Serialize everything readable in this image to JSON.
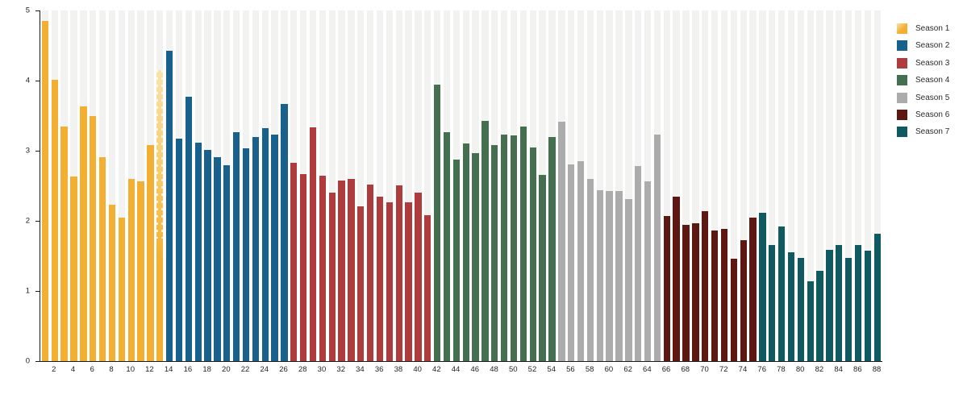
{
  "chart_data": {
    "type": "bar",
    "title": "",
    "xlabel": "",
    "ylabel": "",
    "ylim": [
      0,
      5
    ],
    "y_ticks": [
      0,
      1,
      2,
      3,
      4,
      5
    ],
    "x_range": [
      1,
      88
    ],
    "x_ticks": [
      2,
      4,
      6,
      8,
      10,
      12,
      14,
      16,
      18,
      20,
      22,
      24,
      26,
      28,
      30,
      32,
      34,
      36,
      38,
      40,
      42,
      44,
      46,
      48,
      50,
      52,
      54,
      56,
      58,
      60,
      62,
      64,
      66,
      68,
      70,
      72,
      74,
      76,
      78,
      80,
      82,
      84,
      86,
      88
    ],
    "grid": "vertical light-gray background bands behind every bar, no horizontal gridlines",
    "legend_position": "top-right",
    "background_band_color": "#f2f2f0",
    "axis_color": "#1a1a1a",
    "series": [
      {
        "name": "Season 1",
        "color": "#f2af32",
        "episodes_start": 1,
        "values": [
          4.85,
          4.01,
          3.35,
          2.63,
          3.63,
          3.5,
          2.91,
          2.23,
          2.05,
          2.6,
          2.56,
          3.08,
          4.15
        ]
      },
      {
        "name": "Season 2",
        "color": "#17618c",
        "episodes_start": 14,
        "values": [
          4.43,
          3.17,
          3.77,
          3.12,
          3.01,
          2.91,
          2.79,
          3.26,
          3.03,
          3.2,
          3.32,
          3.23,
          3.67
        ]
      },
      {
        "name": "Season 3",
        "color": "#ae3c3c",
        "episodes_start": 27,
        "values": [
          2.83,
          2.67,
          3.33,
          2.64,
          2.4,
          2.58,
          2.6,
          2.21,
          2.52,
          2.35,
          2.26,
          2.51,
          2.27,
          2.4,
          2.08
        ]
      },
      {
        "name": "Season 4",
        "color": "#44704f",
        "episodes_start": 42,
        "values": [
          3.94,
          3.27,
          2.87,
          3.1,
          2.96,
          3.42,
          3.08,
          3.23,
          3.22,
          3.34,
          3.05,
          2.66,
          3.2
        ]
      },
      {
        "name": "Season 5",
        "color": "#acacac",
        "episodes_start": 55,
        "values": [
          3.41,
          2.81,
          2.85,
          2.6,
          2.44,
          2.42,
          2.43,
          2.31,
          2.78,
          2.56,
          3.23
        ]
      },
      {
        "name": "Season 6",
        "color": "#5e1812",
        "episodes_start": 66,
        "values": [
          2.07,
          2.34,
          1.94,
          1.96,
          2.14,
          1.86,
          1.89,
          1.46,
          1.73,
          2.05
        ]
      },
      {
        "name": "Season 7",
        "color": "#0f5a61",
        "episodes_start": 76,
        "values": [
          2.12,
          1.65,
          1.92,
          1.55,
          1.47,
          1.14,
          1.29,
          1.59,
          1.66,
          1.47,
          1.65,
          1.58,
          1.82
        ]
      }
    ],
    "special_bars": [
      {
        "episode": 13,
        "style": "faded-hatched-top",
        "note": "bar 13 rendered lighter with scalloped/dashed texture fading into solid season-1 gold"
      }
    ]
  }
}
